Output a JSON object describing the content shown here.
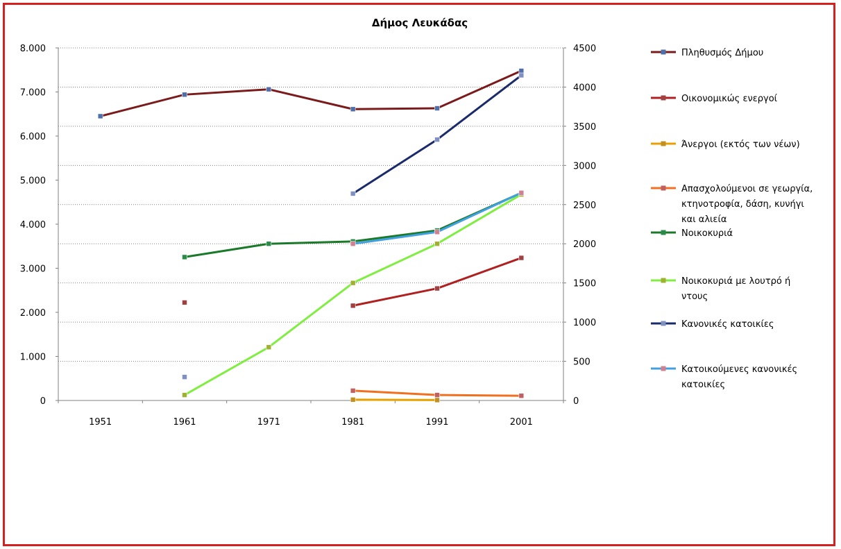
{
  "chart_data": {
    "type": "line",
    "title": "Δήμος Λευκάδας",
    "categories": [
      "1951",
      "1961",
      "1971",
      "1981",
      "1991",
      "2001"
    ],
    "y_left": {
      "ylim": [
        0,
        8000
      ],
      "ticks": [
        0,
        1000,
        2000,
        3000,
        4000,
        5000,
        6000,
        7000,
        8000
      ],
      "tick_labels": [
        "0",
        "1.000",
        "2.000",
        "3.000",
        "4.000",
        "5.000",
        "6.000",
        "7.000",
        "8.000"
      ]
    },
    "y_right": {
      "ylim": [
        0,
        4500
      ],
      "ticks": [
        0,
        500,
        1000,
        1500,
        2000,
        2500,
        3000,
        3500,
        4000,
        4500
      ],
      "tick_labels": [
        "0",
        "500",
        "1000",
        "1500",
        "2000",
        "2500",
        "3000",
        "3500",
        "4000",
        "4500"
      ]
    },
    "grid": true,
    "legend_position": "right",
    "series": [
      {
        "name": "Πληθυσμός Δήμου",
        "axis": "left",
        "color": "#7b1a1a",
        "marker_color": "#4f6fa8",
        "values": [
          6450,
          6940,
          7060,
          6610,
          6630,
          7480
        ]
      },
      {
        "name": "Οικονομικώς ενεργοί",
        "axis": "right",
        "color": "#b02020",
        "marker_color": "#a04040",
        "values": [
          null,
          1250,
          null,
          1210,
          1430,
          1820
        ]
      },
      {
        "name": "Άνεργοι (εκτός των νέων)",
        "axis": "right",
        "color": "#e8a000",
        "marker_color": "#c09020",
        "values": [
          null,
          null,
          null,
          10,
          5,
          null
        ]
      },
      {
        "name": "Απασχολούμενοι σε γεωργία, κτηνοτροφία, δάση, κυνήγι και αλιεία",
        "axis": "right",
        "color": "#f07020",
        "marker_color": "#c06060",
        "values": [
          null,
          null,
          null,
          125,
          70,
          60
        ]
      },
      {
        "name": "Νοικοκυριά",
        "axis": "right",
        "color": "#1a7a2a",
        "marker_color": "#2a8a4a",
        "values": [
          null,
          1830,
          2000,
          2030,
          2170,
          2650
        ]
      },
      {
        "name": "Νοικοκυριά με λουτρό ή ντους",
        "axis": "right",
        "color": "#80ee40",
        "marker_color": "#a0b030",
        "values": [
          null,
          70,
          680,
          1500,
          2000,
          2630
        ]
      },
      {
        "name": "Κανονικές κατοικίες",
        "axis": "right",
        "color": "#1a2a6a",
        "marker_color": "#8090c0",
        "values": [
          null,
          300,
          null,
          2640,
          3330,
          4150
        ]
      },
      {
        "name": "Κατοικούμενες κανονικές κατοικίες",
        "axis": "right",
        "color": "#40a0e0",
        "marker_color": "#d08090",
        "values": [
          null,
          null,
          null,
          2000,
          2150,
          2650
        ]
      }
    ]
  }
}
